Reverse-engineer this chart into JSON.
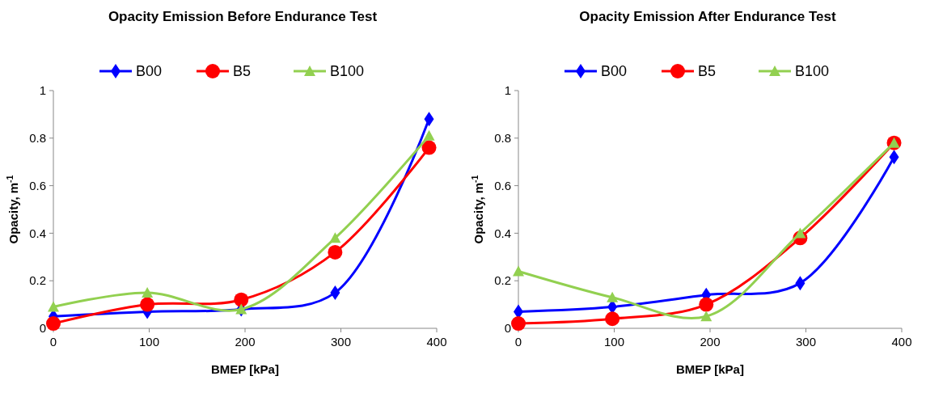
{
  "chart_data": [
    {
      "type": "line",
      "title": "Opacity Emission Before Endurance Test",
      "xlabel": "BMEP [kPa]",
      "ylabel": "Opacity, m$^{-1}$",
      "x": [
        0,
        98,
        196,
        294,
        392
      ],
      "xlim": [
        0,
        400
      ],
      "xticks": [
        0,
        100,
        200,
        300,
        400
      ],
      "ylim": [
        0,
        1
      ],
      "yticks": [
        0,
        0.2,
        0.4,
        0.6,
        0.8,
        1
      ],
      "legend": "top",
      "grid": false,
      "series": [
        {
          "name": "B00",
          "color": "#0000ff",
          "marker": "diamond",
          "values": [
            0.05,
            0.07,
            0.08,
            0.15,
            0.88
          ]
        },
        {
          "name": "B5",
          "color": "#ff0000",
          "marker": "circle",
          "values": [
            0.02,
            0.1,
            0.12,
            0.32,
            0.76
          ]
        },
        {
          "name": "B100",
          "color": "#92d050",
          "marker": "triangle",
          "values": [
            0.09,
            0.15,
            0.08,
            0.38,
            0.81
          ]
        }
      ]
    },
    {
      "type": "line",
      "title": "Opacity Emission After Endurance Test",
      "xlabel": "BMEP [kPa]",
      "ylabel": "Opacity, m$^{-1}$",
      "x": [
        0,
        98,
        196,
        294,
        392
      ],
      "xlim": [
        0,
        400
      ],
      "xticks": [
        0,
        100,
        200,
        300,
        400
      ],
      "ylim": [
        0,
        1
      ],
      "yticks": [
        0,
        0.2,
        0.4,
        0.6,
        0.8,
        1
      ],
      "legend": "top",
      "grid": false,
      "series": [
        {
          "name": "B00",
          "color": "#0000ff",
          "marker": "diamond",
          "values": [
            0.07,
            0.09,
            0.14,
            0.19,
            0.72
          ]
        },
        {
          "name": "B5",
          "color": "#ff0000",
          "marker": "circle",
          "values": [
            0.02,
            0.04,
            0.1,
            0.38,
            0.78
          ]
        },
        {
          "name": "B100",
          "color": "#92d050",
          "marker": "triangle",
          "values": [
            0.24,
            0.13,
            0.05,
            0.4,
            0.78
          ]
        }
      ]
    }
  ]
}
